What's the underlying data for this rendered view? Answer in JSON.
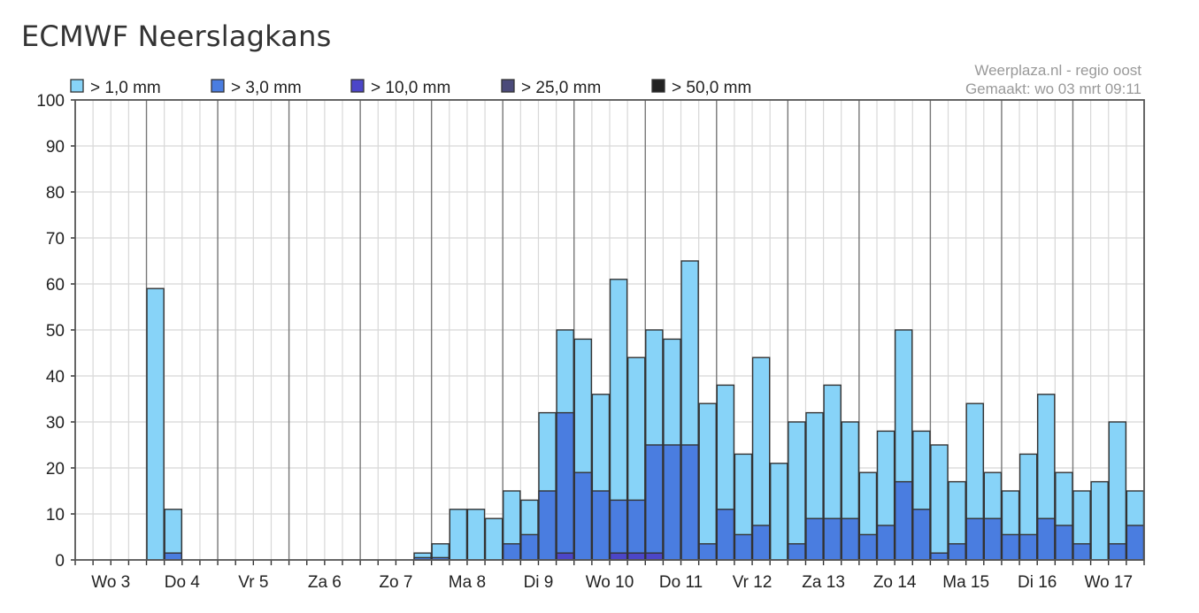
{
  "page": {
    "title": "ECMWF Neerslagkans"
  },
  "chart_data": {
    "type": "bar",
    "stacked": true,
    "ylim": [
      0,
      100
    ],
    "yticks": [
      0,
      10,
      20,
      30,
      40,
      50,
      60,
      70,
      80,
      90,
      100
    ],
    "grid": true,
    "legend_position": "top",
    "credit": "Weerplaza.nl - regio oost",
    "made": "Gemaakt: wo 03 mrt 09:11",
    "day_labels": [
      "Wo 3",
      "Do 4",
      "Vr 5",
      "Za 6",
      "Zo 7",
      "Ma 8",
      "Di 9",
      "Wo 10",
      "Do 11",
      "Vr 12",
      "Za 13",
      "Zo 14",
      "Ma 15",
      "Di 16",
      "Wo 17"
    ],
    "bars_per_day": 4,
    "series": [
      {
        "name": "> 1,0 mm",
        "color": "#87d3f8",
        "values": [
          0,
          0,
          0,
          0,
          59,
          11,
          0,
          0,
          0,
          0,
          0,
          0,
          0,
          0,
          0,
          0,
          0,
          0,
          0,
          1.5,
          3.5,
          11,
          11,
          9,
          15,
          13,
          32,
          50,
          48,
          36,
          61,
          44,
          50,
          48,
          65,
          34,
          38,
          23,
          44,
          21,
          30,
          32,
          38,
          30,
          19,
          28,
          50,
          28,
          25,
          17,
          34,
          19,
          15,
          23,
          36,
          19,
          15,
          17,
          30,
          15
        ]
      },
      {
        "name": "> 3,0 mm",
        "color": "#4a7de0",
        "values": [
          0,
          0,
          0,
          0,
          0,
          1.5,
          0,
          0,
          0,
          0,
          0,
          0,
          0,
          0,
          0,
          0,
          0,
          0,
          0,
          0.5,
          0.5,
          0,
          0,
          0,
          3.5,
          5.5,
          15,
          32,
          19,
          15,
          13,
          13,
          25,
          25,
          25,
          3.5,
          11,
          5.5,
          7.5,
          0,
          3.5,
          9,
          9,
          9,
          5.5,
          7.5,
          17,
          11,
          1.5,
          3.5,
          9,
          9,
          5.5,
          5.5,
          9,
          7.5,
          3.5,
          0,
          3.5,
          7.5
        ]
      },
      {
        "name": "> 10,0 mm",
        "color": "#4c46c8",
        "values": [
          0,
          0,
          0,
          0,
          0,
          0,
          0,
          0,
          0,
          0,
          0,
          0,
          0,
          0,
          0,
          0,
          0,
          0,
          0,
          0,
          0,
          0,
          0,
          0,
          0,
          0,
          0,
          1.5,
          0,
          0,
          1.5,
          1.5,
          1.5,
          0,
          0,
          0,
          0,
          0,
          0,
          0,
          0,
          0,
          0,
          0,
          0,
          0,
          0,
          0,
          0,
          0,
          0,
          0,
          0,
          0,
          0,
          0,
          0,
          0,
          0,
          0
        ]
      },
      {
        "name": "> 25,0 mm",
        "color": "#4b4a7a",
        "values": []
      },
      {
        "name": "> 50,0 mm",
        "color": "#222222",
        "values": []
      }
    ]
  }
}
